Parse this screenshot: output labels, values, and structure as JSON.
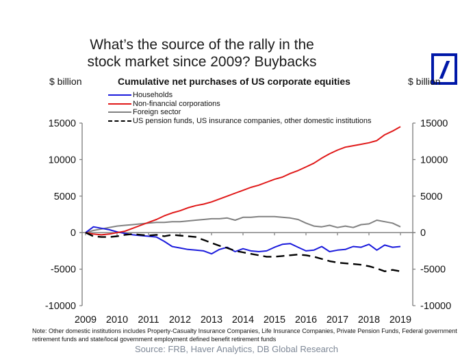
{
  "header": {
    "title_line1": "What’s the source of the rally in the",
    "title_line2": "stock market since 2009? Buybacks",
    "logo": "deutsche-bank-logo",
    "brand_color": "#0018a8"
  },
  "footer": {
    "note": "Note: Other domestic institutions includes Property-Casualty Insurance Companies, Life Insurance Companies, Private Pension Funds, Federal government retirement funds and state/local government employment defined benefit retirement funds",
    "source": "Source: FRB, Haver Analytics, DB Global Research"
  },
  "chart_data": {
    "type": "line",
    "title": "Cumulative net purchases of US corporate equities",
    "ylabel_left": "$ billion",
    "ylabel_right": "$ billion",
    "xlabel": "",
    "xlim": [
      2009,
      2019
    ],
    "ylim": [
      -10000,
      15000
    ],
    "x_ticks": [
      "2009",
      "2010",
      "2011",
      "2012",
      "2013",
      "2014",
      "2015",
      "2016",
      "2017",
      "2018",
      "2019"
    ],
    "y_ticks": [
      "15000",
      "10000",
      "5000",
      "0",
      "-5000",
      "-10000"
    ],
    "y_tick_values": [
      15000,
      10000,
      5000,
      0,
      -5000,
      -10000
    ],
    "legend_position": "top-left",
    "grid": false,
    "x": [
      2009.0,
      2009.25,
      2009.5,
      2009.75,
      2010.0,
      2010.25,
      2010.5,
      2010.75,
      2011.0,
      2011.25,
      2011.5,
      2011.75,
      2012.0,
      2012.25,
      2012.5,
      2012.75,
      2013.0,
      2013.25,
      2013.5,
      2013.75,
      2014.0,
      2014.25,
      2014.5,
      2014.75,
      2015.0,
      2015.25,
      2015.5,
      2015.75,
      2016.0,
      2016.25,
      2016.5,
      2016.75,
      2017.0,
      2017.25,
      2017.5,
      2017.75,
      2018.0,
      2018.25,
      2018.5,
      2018.75,
      2019.0
    ],
    "series": [
      {
        "name": "Households",
        "color": "#1a1adc",
        "style": "solid",
        "values": [
          0,
          800,
          600,
          400,
          100,
          -100,
          -300,
          -400,
          -500,
          -600,
          -1200,
          -1900,
          -2100,
          -2300,
          -2400,
          -2500,
          -2900,
          -2300,
          -2000,
          -2600,
          -2200,
          -2500,
          -2600,
          -2500,
          -2000,
          -1600,
          -1500,
          -2000,
          -2500,
          -2400,
          -1900,
          -2600,
          -2400,
          -2300,
          -1900,
          -2000,
          -1600,
          -2400,
          -1700,
          -2000,
          -1900
        ]
      },
      {
        "name": "Non-financial corporations",
        "color": "#e01818",
        "style": "solid",
        "values": [
          0,
          -200,
          -300,
          -200,
          0,
          200,
          600,
          1000,
          1400,
          1800,
          2300,
          2700,
          3000,
          3400,
          3700,
          3900,
          4200,
          4600,
          5000,
          5400,
          5800,
          6200,
          6500,
          6900,
          7300,
          7600,
          8100,
          8500,
          9000,
          9500,
          10200,
          10800,
          11300,
          11700,
          11900,
          12100,
          12300,
          12600,
          13400,
          13900,
          14500
        ]
      },
      {
        "name": "Foreign sector",
        "color": "#808080",
        "style": "solid",
        "values": [
          0,
          300,
          500,
          700,
          900,
          1000,
          1100,
          1200,
          1300,
          1400,
          1400,
          1500,
          1500,
          1600,
          1700,
          1800,
          1900,
          1900,
          2000,
          1700,
          2100,
          2100,
          2200,
          2200,
          2200,
          2100,
          2000,
          1800,
          1300,
          900,
          800,
          1000,
          700,
          900,
          700,
          1100,
          1200,
          1700,
          1500,
          1300,
          800
        ]
      },
      {
        "name": "US pension funds, US insurance companies, other domestic institutions",
        "color": "#000000",
        "style": "dashed",
        "values": [
          0,
          -500,
          -600,
          -600,
          -500,
          -300,
          -200,
          -300,
          -400,
          -300,
          -500,
          -300,
          -400,
          -500,
          -600,
          -1000,
          -1400,
          -1800,
          -2100,
          -2500,
          -2700,
          -2900,
          -3100,
          -3300,
          -3300,
          -3200,
          -3100,
          -3000,
          -3100,
          -3300,
          -3600,
          -3900,
          -4100,
          -4200,
          -4300,
          -4400,
          -4600,
          -4900,
          -5300,
          -5100,
          -5300
        ]
      }
    ]
  }
}
